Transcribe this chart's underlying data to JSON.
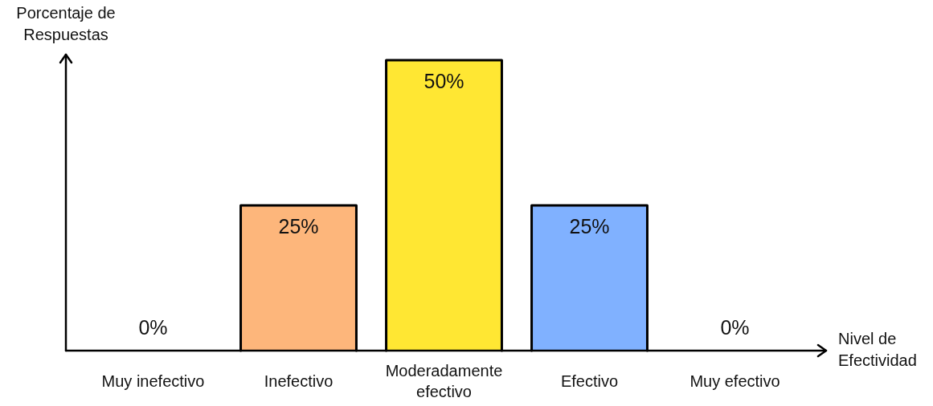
{
  "chart_data": {
    "type": "bar",
    "xlabel": "Nivel de Efectividad",
    "ylabel": "Porcentaje de Respuestas",
    "categories": [
      "Muy inefectivo",
      "Inefectivo",
      "Moderadamente efectivo",
      "Efectivo",
      "Muy efectivo"
    ],
    "values": [
      0,
      25,
      50,
      25,
      0
    ],
    "colors": [
      null,
      "#fdb67b",
      "#ffe733",
      "#80b1ff",
      null
    ],
    "value_labels": [
      "0%",
      "25%",
      "50%",
      "25%",
      "0%"
    ]
  }
}
